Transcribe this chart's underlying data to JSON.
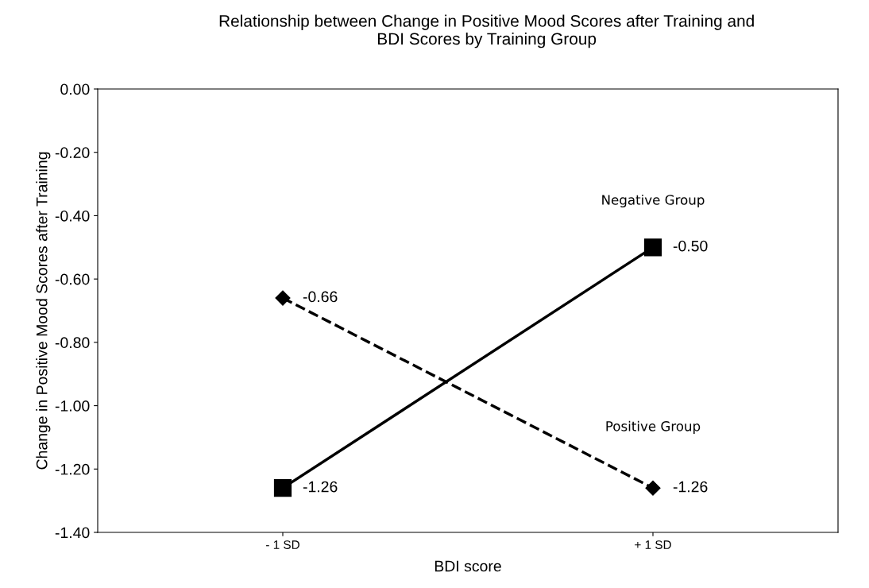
{
  "chart_data": {
    "type": "line",
    "title": "Relationship between Change in Positive Mood Scores after Training and\nBDI Scores by Training Group",
    "xlabel": "BDI score",
    "ylabel": "Change in Positive Mood Scores after Training",
    "categories": [
      "- 1 SD",
      "+ 1 SD"
    ],
    "series": [
      {
        "name": "Negative Group",
        "color": "#000000",
        "values": [
          -1.26,
          -0.5
        ],
        "value_labels": [
          "-1.26",
          "-0.50"
        ],
        "marker": "square",
        "line_style": "solid"
      },
      {
        "name": "Positive Group",
        "color": "#000000",
        "values": [
          -0.66,
          -1.26
        ],
        "value_labels": [
          "-0.66",
          "-1.26"
        ],
        "marker": "diamond",
        "line_style": "dashed"
      }
    ],
    "ylim": [
      -1.4,
      0
    ],
    "yticks": [
      {
        "value": -1.4,
        "label": "-1.40"
      },
      {
        "value": -1.2,
        "label": "-1.20"
      },
      {
        "value": -1.0,
        "label": "-1.00"
      },
      {
        "value": -0.8,
        "label": "-0.80"
      },
      {
        "value": -0.6,
        "label": "-0.60"
      },
      {
        "value": -0.4,
        "label": "-0.40"
      },
      {
        "value": -0.2,
        "label": "-0.20"
      },
      {
        "value": 0,
        "label": "0.00"
      }
    ],
    "grid": false,
    "legend": false
  }
}
